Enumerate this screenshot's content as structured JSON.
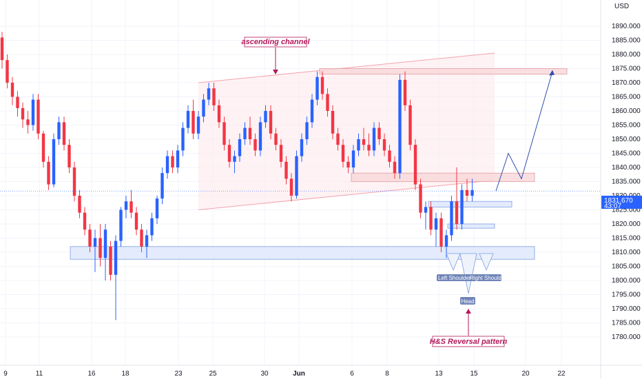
{
  "chart_data": {
    "type": "candlestick",
    "currency": "USD",
    "current_price": "1831.670",
    "countdown": "43:07",
    "y_ticks": [
      1780,
      1785,
      1790,
      1795,
      1800,
      1805,
      1810,
      1815,
      1820,
      1825,
      1830,
      1835,
      1840,
      1845,
      1850,
      1855,
      1860,
      1865,
      1870,
      1875,
      1880,
      1885,
      1890
    ],
    "y_tick_labels": [
      "1780.000",
      "1785.000",
      "1790.000",
      "1795.000",
      "1800.000",
      "1805.000",
      "1810.000",
      "1815.000",
      "1820.000",
      "1825.000",
      "1830.000",
      "1835.000",
      "1840.000",
      "1845.000",
      "1850.000",
      "1855.000",
      "1860.000",
      "1865.000",
      "1870.000",
      "1875.000",
      "1880.000",
      "1885.000",
      "1890.000"
    ],
    "x_labels": [
      "9",
      "11",
      "16",
      "18",
      "23",
      "25",
      "30",
      "Jun",
      "6",
      "8",
      "13",
      "15",
      "20",
      "22"
    ],
    "candles": [
      [
        1886,
        1888,
        1875,
        1878
      ],
      [
        1878,
        1880,
        1868,
        1870
      ],
      [
        1870,
        1872,
        1862,
        1865
      ],
      [
        1865,
        1867,
        1858,
        1861
      ],
      [
        1861,
        1863,
        1854,
        1857
      ],
      [
        1857,
        1860,
        1852,
        1855
      ],
      [
        1855,
        1866,
        1853,
        1864
      ],
      [
        1864,
        1866,
        1850,
        1852
      ],
      [
        1852,
        1853,
        1840,
        1842
      ],
      [
        1842,
        1844,
        1832,
        1834
      ],
      [
        1834,
        1852,
        1833,
        1850
      ],
      [
        1850,
        1858,
        1848,
        1856
      ],
      [
        1856,
        1858,
        1846,
        1848
      ],
      [
        1848,
        1850,
        1838,
        1840
      ],
      [
        1840,
        1842,
        1828,
        1830
      ],
      [
        1830,
        1832,
        1822,
        1824
      ],
      [
        1824,
        1826,
        1816,
        1818
      ],
      [
        1818,
        1820,
        1810,
        1812
      ],
      [
        1812,
        1818,
        1803,
        1815
      ],
      [
        1815,
        1820,
        1805,
        1808
      ],
      [
        1808,
        1820,
        1800,
        1818
      ],
      [
        1812,
        1814,
        1800,
        1802
      ],
      [
        1802,
        1816,
        1786,
        1814
      ],
      [
        1814,
        1826,
        1812,
        1825
      ],
      [
        1825,
        1830,
        1822,
        1828
      ],
      [
        1828,
        1832,
        1822,
        1824
      ],
      [
        1824,
        1826,
        1816,
        1818
      ],
      [
        1818,
        1820,
        1810,
        1812
      ],
      [
        1812,
        1818,
        1808,
        1816
      ],
      [
        1816,
        1824,
        1814,
        1822
      ],
      [
        1822,
        1830,
        1820,
        1829
      ],
      [
        1829,
        1840,
        1827,
        1838
      ],
      [
        1838,
        1846,
        1836,
        1844
      ],
      [
        1844,
        1846,
        1838,
        1840
      ],
      [
        1840,
        1848,
        1838,
        1846
      ],
      [
        1846,
        1856,
        1844,
        1854
      ],
      [
        1854,
        1862,
        1852,
        1860
      ],
      [
        1860,
        1864,
        1850,
        1852
      ],
      [
        1852,
        1860,
        1850,
        1858
      ],
      [
        1858,
        1866,
        1856,
        1864
      ],
      [
        1864,
        1870,
        1862,
        1868
      ],
      [
        1868,
        1870,
        1860,
        1862
      ],
      [
        1862,
        1864,
        1854,
        1856
      ],
      [
        1856,
        1858,
        1846,
        1848
      ],
      [
        1848,
        1850,
        1840,
        1842
      ],
      [
        1842,
        1846,
        1838,
        1844
      ],
      [
        1844,
        1852,
        1842,
        1850
      ],
      [
        1850,
        1856,
        1848,
        1854
      ],
      [
        1854,
        1858,
        1848,
        1850
      ],
      [
        1850,
        1852,
        1844,
        1846
      ],
      [
        1846,
        1858,
        1844,
        1856
      ],
      [
        1856,
        1862,
        1854,
        1860
      ],
      [
        1860,
        1862,
        1850,
        1852
      ],
      [
        1852,
        1854,
        1846,
        1848
      ],
      [
        1848,
        1850,
        1840,
        1842
      ],
      [
        1842,
        1844,
        1834,
        1836
      ],
      [
        1836,
        1838,
        1828,
        1830
      ],
      [
        1830,
        1846,
        1829,
        1844
      ],
      [
        1844,
        1852,
        1842,
        1850
      ],
      [
        1850,
        1858,
        1848,
        1856
      ],
      [
        1856,
        1866,
        1854,
        1864
      ],
      [
        1864,
        1874,
        1862,
        1872
      ],
      [
        1872,
        1874,
        1864,
        1866
      ],
      [
        1866,
        1868,
        1858,
        1860
      ],
      [
        1860,
        1862,
        1850,
        1852
      ],
      [
        1852,
        1854,
        1846,
        1848
      ],
      [
        1848,
        1850,
        1840,
        1842
      ],
      [
        1842,
        1844,
        1838,
        1840
      ],
      [
        1840,
        1848,
        1838,
        1846
      ],
      [
        1846,
        1852,
        1844,
        1850
      ],
      [
        1850,
        1854,
        1846,
        1848
      ],
      [
        1848,
        1852,
        1844,
        1846
      ],
      [
        1846,
        1856,
        1844,
        1854
      ],
      [
        1854,
        1856,
        1848,
        1850
      ],
      [
        1850,
        1852,
        1844,
        1846
      ],
      [
        1846,
        1848,
        1840,
        1842
      ],
      [
        1842,
        1844,
        1836,
        1838
      ],
      [
        1838,
        1873,
        1836,
        1871
      ],
      [
        1871,
        1874,
        1860,
        1862
      ],
      [
        1862,
        1864,
        1846,
        1848
      ],
      [
        1848,
        1850,
        1832,
        1834
      ],
      [
        1834,
        1836,
        1822,
        1824
      ],
      [
        1824,
        1828,
        1818,
        1826
      ],
      [
        1826,
        1828,
        1816,
        1818
      ],
      [
        1818,
        1824,
        1812,
        1822
      ],
      [
        1822,
        1824,
        1810,
        1812
      ],
      [
        1812,
        1818,
        1808,
        1816
      ],
      [
        1816,
        1830,
        1814,
        1828
      ],
      [
        1828,
        1840,
        1818,
        1820
      ],
      [
        1820,
        1834,
        1818,
        1832
      ],
      [
        1832,
        1836,
        1828,
        1830
      ],
      [
        1830,
        1836,
        1828,
        1832
      ]
    ],
    "annotations": {
      "channel_label": "ascending channel",
      "pattern_label": "H&S Reversal pattern",
      "left_shoulder": "Left Shoulder",
      "right_shoulder": "Right Shoulder",
      "head": "Head"
    },
    "zones": [
      {
        "role": "support",
        "y": [
          1807.5,
          1812
        ],
        "color": "#dce6fb"
      },
      {
        "role": "resistance",
        "y": [
          1873,
          1875
        ],
        "color": "#f8d7d9"
      },
      {
        "role": "mid-zone",
        "y": [
          1835,
          1838
        ],
        "color": "#f8d7d9"
      },
      {
        "role": "neckline",
        "y": [
          1826,
          1828
        ],
        "color": "#dce6fb"
      },
      {
        "role": "neckline-low",
        "y": [
          1818.5,
          1820
        ],
        "color": "#dce6fb"
      }
    ],
    "projection": [
      1831.67,
      1845,
      1836,
      1874
    ],
    "colors": {
      "up": "#2962ff",
      "down": "#f23645",
      "grid": "#f0f3fa",
      "channel": "#fde9ec",
      "anno": "#b2195b",
      "label_bg": "#6f84b8"
    }
  }
}
